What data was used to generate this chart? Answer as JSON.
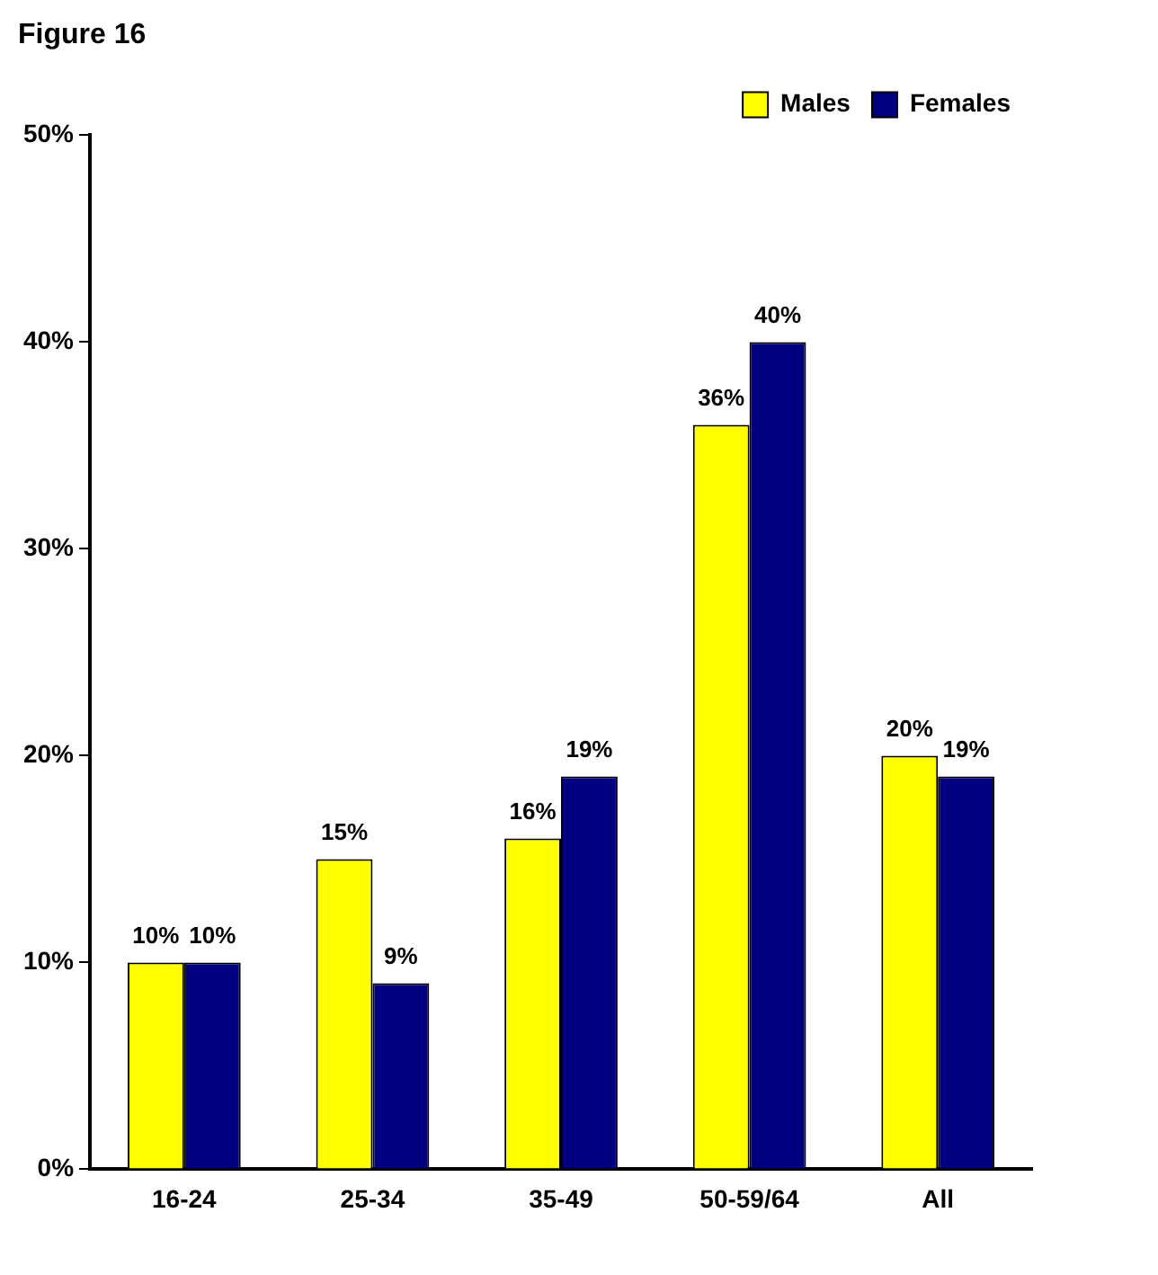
{
  "chart_data": {
    "type": "bar",
    "title": "Figure 16",
    "categories": [
      "16-24",
      "25-34",
      "35-49",
      "50-59/64",
      "All"
    ],
    "series": [
      {
        "name": "Males",
        "color": "#ffff00",
        "values": [
          10,
          15,
          16,
          36,
          20
        ],
        "value_labels": [
          "10%",
          "15%",
          "16%",
          "36%",
          "20%"
        ]
      },
      {
        "name": "Females",
        "color": "#000080",
        "values": [
          10,
          9,
          19,
          40,
          19
        ],
        "value_labels": [
          "10%",
          "9%",
          "19%",
          "40%",
          "19%"
        ]
      }
    ],
    "ylim": [
      0,
      50
    ],
    "yticks": [
      {
        "value": 0,
        "label": "0%"
      },
      {
        "value": 10,
        "label": "10%"
      },
      {
        "value": 20,
        "label": "20%"
      },
      {
        "value": 30,
        "label": "30%"
      },
      {
        "value": 40,
        "label": "40%"
      },
      {
        "value": 50,
        "label": "50%"
      }
    ],
    "grid": false,
    "legend": "top right"
  }
}
